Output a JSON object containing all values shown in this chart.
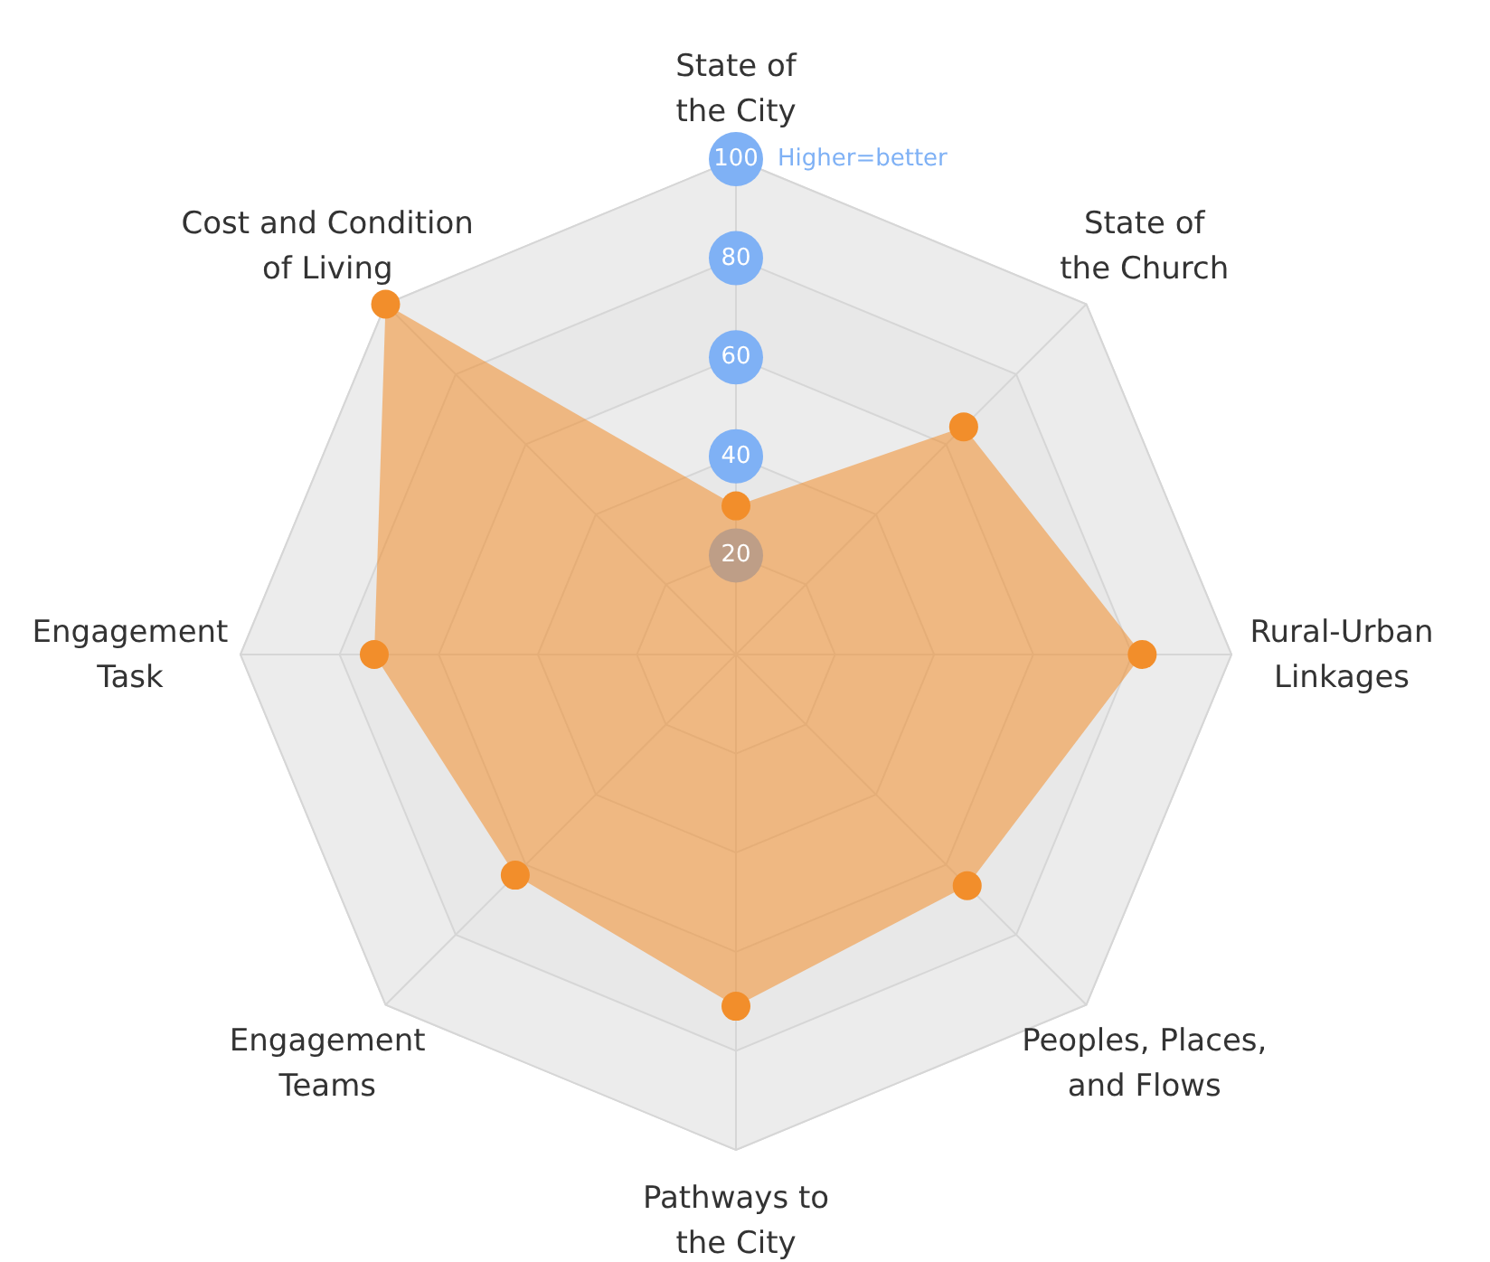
{
  "chart_data": {
    "type": "radar",
    "categories": [
      "State of the City",
      "State of the Church",
      "Rural-Urban Linkages",
      "Peoples, Places, and Flows",
      "Pathways to the City",
      "Engagement Teams",
      "Engagement Task",
      "Cost and Condition of Living"
    ],
    "series": [
      {
        "color": "#f28e2b",
        "values": [
          30,
          65,
          82,
          66,
          71,
          63,
          73,
          100
        ]
      }
    ],
    "ylim": [
      0,
      100
    ],
    "yticks": [
      20,
      40,
      60,
      80,
      100
    ],
    "grid": true,
    "marker": "circle",
    "annotations": [
      "Higher=better"
    ]
  }
}
